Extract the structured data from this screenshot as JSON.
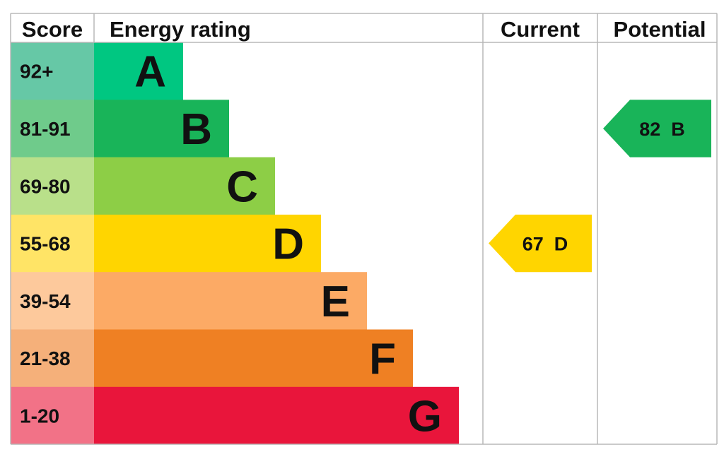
{
  "headers": {
    "score": "Score",
    "energy_rating": "Energy rating",
    "current": "Current",
    "potential": "Potential"
  },
  "chart_data": {
    "type": "bar",
    "bands": [
      {
        "score": "92+",
        "letter": "A",
        "color": "#00c781",
        "score_bg": "#66c8a6",
        "length": 1
      },
      {
        "score": "81-91",
        "letter": "B",
        "color": "#19b459",
        "score_bg": "#6fcb8b",
        "length": 2
      },
      {
        "score": "69-80",
        "letter": "C",
        "color": "#8dce46",
        "score_bg": "#b9e08a",
        "length": 3
      },
      {
        "score": "55-68",
        "letter": "D",
        "color": "#ffd500",
        "score_bg": "#ffe466",
        "length": 4
      },
      {
        "score": "39-54",
        "letter": "E",
        "color": "#fcaa65",
        "score_bg": "#fdc99c",
        "length": 5
      },
      {
        "score": "21-38",
        "letter": "F",
        "color": "#ef8023",
        "score_bg": "#f5b07a",
        "length": 6
      },
      {
        "score": "1-20",
        "letter": "G",
        "color": "#e9153b",
        "score_bg": "#f27287",
        "length": 7
      }
    ],
    "current": {
      "value": 67,
      "letter": "D",
      "label": "67  D",
      "color": "#ffd500"
    },
    "potential": {
      "value": 82,
      "letter": "B",
      "label": "82  B",
      "color": "#19b459"
    }
  }
}
